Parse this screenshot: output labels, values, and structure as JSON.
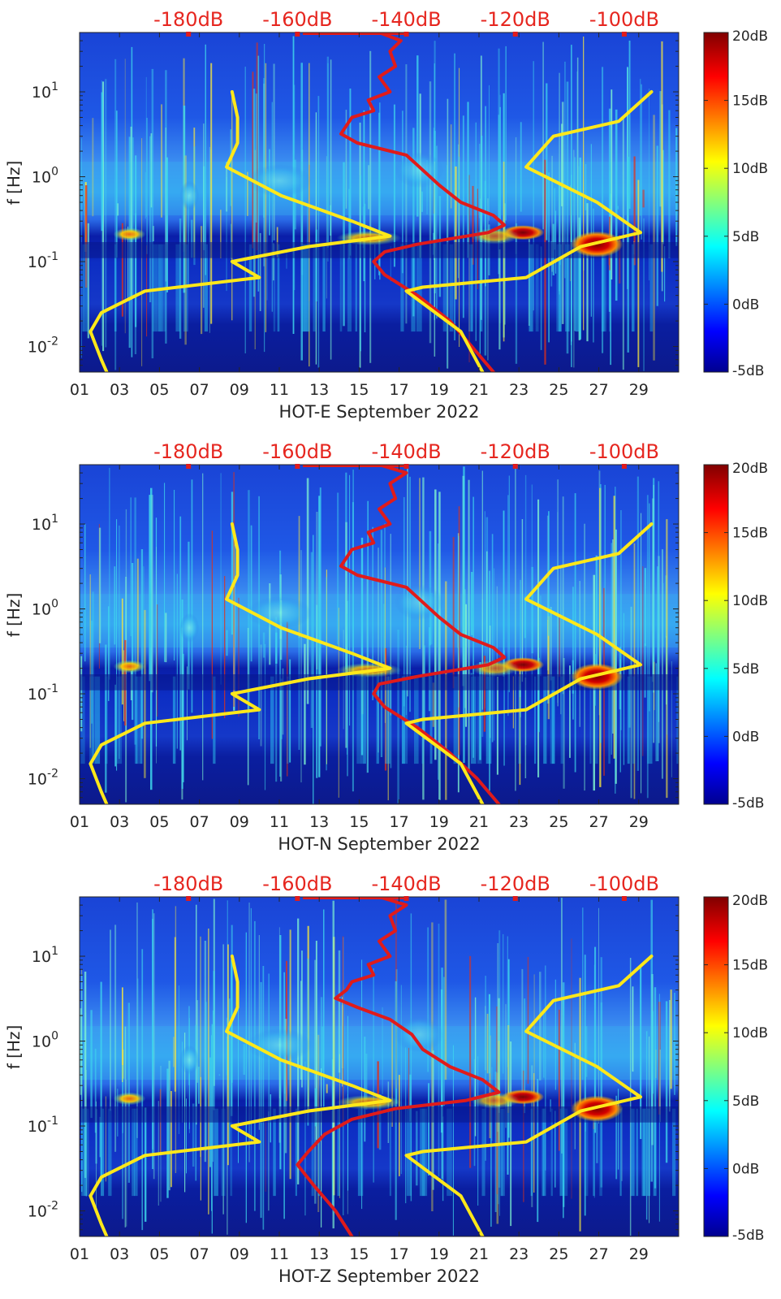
{
  "chart_data": [
    {
      "type": "heatmap",
      "title": "",
      "station": "HOT-E",
      "xlabel": "HOT-E September 2022",
      "ylabel": "f [Hz]",
      "x_tick_labels": [
        "01",
        "03",
        "05",
        "07",
        "09",
        "11",
        "13",
        "15",
        "17",
        "19",
        "21",
        "23",
        "25",
        "27",
        "29"
      ],
      "y_tick_labels": [
        {
          "base": "10",
          "exp": "1"
        },
        {
          "base": "10",
          "exp": "0"
        },
        {
          "base": "10",
          "exp": "-1"
        },
        {
          "base": "10",
          "exp": "-2"
        }
      ],
      "top_axis_labels": [
        "-180dB",
        "-160dB",
        "-140dB",
        "-120dB",
        "-100dB"
      ],
      "colorbar_labels": [
        "20dB",
        "15dB",
        "10dB",
        "5dB",
        "0dB",
        "-5dB"
      ],
      "colorbar_range_db": [
        -5,
        20
      ],
      "xlim_days": [
        1,
        31
      ],
      "ylim_hz": [
        0.005,
        50
      ],
      "overlays": [
        {
          "name": "red-psd-curve",
          "color": "#e01b1b",
          "points_db_hz": [
            [
              -145,
              50
            ],
            [
              -141,
              40
            ],
            [
              -143,
              30
            ],
            [
              -142,
              20
            ],
            [
              -145,
              15
            ],
            [
              -143,
              10
            ],
            [
              -147,
              8
            ],
            [
              -146,
              6
            ],
            [
              -150,
              5
            ],
            [
              -151,
              4
            ],
            [
              -152,
              3.2
            ],
            [
              -149,
              2.5
            ],
            [
              -140,
              1.8
            ],
            [
              -137,
              1.2
            ],
            [
              -134,
              0.8
            ],
            [
              -130,
              0.5
            ],
            [
              -124,
              0.35
            ],
            [
              -122,
              0.27
            ],
            [
              -125,
              0.22
            ],
            [
              -138,
              0.16
            ],
            [
              -144,
              0.13
            ],
            [
              -146,
              0.1
            ],
            [
              -144,
              0.07
            ],
            [
              -138,
              0.04
            ],
            [
              -132,
              0.02
            ],
            [
              -128,
              0.01
            ],
            [
              -124,
              0.005
            ]
          ]
        },
        {
          "name": "yellow-low-noise-curve",
          "color": "#ffe81a",
          "points_db_hz": [
            [
              -172,
              10
            ],
            [
              -171,
              5
            ],
            [
              -171,
              2.5
            ],
            [
              -173,
              1.3
            ],
            [
              -163,
              0.6
            ],
            [
              -150,
              0.3
            ],
            [
              -143,
              0.2
            ],
            [
              -158,
              0.15
            ],
            [
              -172,
              0.1
            ],
            [
              -167,
              0.065
            ],
            [
              -188,
              0.045
            ],
            [
              -196,
              0.025
            ],
            [
              -198,
              0.015
            ],
            [
              -196,
              0.007
            ],
            [
              -195,
              0.005
            ]
          ]
        },
        {
          "name": "yellow-high-noise-curve",
          "color": "#ffe81a",
          "points_db_hz": [
            [
              -95,
              10
            ],
            [
              -101,
              4.5
            ],
            [
              -113,
              3
            ],
            [
              -118,
              1.3
            ],
            [
              -105,
              0.5
            ],
            [
              -97,
              0.22
            ],
            [
              -108,
              0.15
            ],
            [
              -118,
              0.065
            ],
            [
              -137,
              0.05
            ],
            [
              -140,
              0.045
            ],
            [
              -130,
              0.015
            ],
            [
              -126,
              0.005
            ]
          ]
        }
      ]
    },
    {
      "type": "heatmap",
      "title": "",
      "station": "HOT-N",
      "xlabel": "HOT-N September 2022",
      "ylabel": "f [Hz]",
      "x_tick_labels": [
        "01",
        "03",
        "05",
        "07",
        "09",
        "11",
        "13",
        "15",
        "17",
        "19",
        "21",
        "23",
        "25",
        "27",
        "29"
      ],
      "y_tick_labels": [
        {
          "base": "10",
          "exp": "1"
        },
        {
          "base": "10",
          "exp": "0"
        },
        {
          "base": "10",
          "exp": "-1"
        },
        {
          "base": "10",
          "exp": "-2"
        }
      ],
      "top_axis_labels": [
        "-180dB",
        "-160dB",
        "-140dB",
        "-120dB",
        "-100dB"
      ],
      "colorbar_labels": [
        "20dB",
        "15dB",
        "10dB",
        "5dB",
        "0dB",
        "-5dB"
      ],
      "colorbar_range_db": [
        -5,
        20
      ],
      "xlim_days": [
        1,
        31
      ],
      "ylim_hz": [
        0.005,
        50
      ],
      "overlays": [
        {
          "name": "red-psd-curve",
          "color": "#e01b1b",
          "points_db_hz": [
            [
              -145,
              50
            ],
            [
              -140,
              40
            ],
            [
              -143,
              30
            ],
            [
              -142,
              20
            ],
            [
              -145,
              15
            ],
            [
              -143,
              10
            ],
            [
              -147,
              8
            ],
            [
              -146,
              6
            ],
            [
              -150,
              5
            ],
            [
              -151,
              4
            ],
            [
              -152,
              3.2
            ],
            [
              -149,
              2.5
            ],
            [
              -140,
              1.8
            ],
            [
              -137,
              1.2
            ],
            [
              -134,
              0.8
            ],
            [
              -130,
              0.5
            ],
            [
              -124,
              0.35
            ],
            [
              -122,
              0.27
            ],
            [
              -125,
              0.22
            ],
            [
              -138,
              0.16
            ],
            [
              -145,
              0.13
            ],
            [
              -146,
              0.1
            ],
            [
              -144,
              0.07
            ],
            [
              -138,
              0.04
            ],
            [
              -132,
              0.02
            ],
            [
              -127,
              0.01
            ],
            [
              -123,
              0.005
            ]
          ]
        },
        {
          "name": "yellow-low-noise-curve",
          "color": "#ffe81a",
          "points_db_hz": [
            [
              -172,
              10
            ],
            [
              -171,
              5
            ],
            [
              -171,
              2.5
            ],
            [
              -173,
              1.3
            ],
            [
              -163,
              0.6
            ],
            [
              -150,
              0.3
            ],
            [
              -143,
              0.2
            ],
            [
              -158,
              0.15
            ],
            [
              -172,
              0.1
            ],
            [
              -167,
              0.065
            ],
            [
              -188,
              0.045
            ],
            [
              -196,
              0.025
            ],
            [
              -198,
              0.015
            ],
            [
              -196,
              0.007
            ],
            [
              -195,
              0.005
            ]
          ]
        },
        {
          "name": "yellow-high-noise-curve",
          "color": "#ffe81a",
          "points_db_hz": [
            [
              -95,
              10
            ],
            [
              -101,
              4.5
            ],
            [
              -113,
              3
            ],
            [
              -118,
              1.3
            ],
            [
              -105,
              0.5
            ],
            [
              -97,
              0.22
            ],
            [
              -108,
              0.15
            ],
            [
              -118,
              0.065
            ],
            [
              -137,
              0.05
            ],
            [
              -140,
              0.045
            ],
            [
              -130,
              0.015
            ],
            [
              -126,
              0.005
            ]
          ]
        }
      ]
    },
    {
      "type": "heatmap",
      "title": "",
      "station": "HOT-Z",
      "xlabel": "HOT-Z September 2022",
      "ylabel": "f [Hz]",
      "x_tick_labels": [
        "01",
        "03",
        "05",
        "07",
        "09",
        "11",
        "13",
        "15",
        "17",
        "19",
        "21",
        "23",
        "25",
        "27",
        "29"
      ],
      "y_tick_labels": [
        {
          "base": "10",
          "exp": "1"
        },
        {
          "base": "10",
          "exp": "0"
        },
        {
          "base": "10",
          "exp": "-1"
        },
        {
          "base": "10",
          "exp": "-2"
        }
      ],
      "top_axis_labels": [
        "-180dB",
        "-160dB",
        "-140dB",
        "-120dB",
        "-100dB"
      ],
      "colorbar_labels": [
        "20dB",
        "15dB",
        "10dB",
        "5dB",
        "0dB",
        "-5dB"
      ],
      "colorbar_range_db": [
        -5,
        20
      ],
      "xlim_days": [
        1,
        31
      ],
      "ylim_hz": [
        0.005,
        50
      ],
      "overlays": [
        {
          "name": "red-psd-curve",
          "color": "#e01b1b",
          "points_db_hz": [
            [
              -145,
              50
            ],
            [
              -140,
              40
            ],
            [
              -143,
              30
            ],
            [
              -142,
              20
            ],
            [
              -145,
              15
            ],
            [
              -143,
              10
            ],
            [
              -147,
              8
            ],
            [
              -146,
              6
            ],
            [
              -150,
              5
            ],
            [
              -151,
              4
            ],
            [
              -153,
              3.2
            ],
            [
              -149,
              2.5
            ],
            [
              -143,
              1.8
            ],
            [
              -139,
              1.2
            ],
            [
              -137,
              0.8
            ],
            [
              -132,
              0.5
            ],
            [
              -126,
              0.35
            ],
            [
              -123,
              0.25
            ],
            [
              -129,
              0.2
            ],
            [
              -142,
              0.16
            ],
            [
              -150,
              0.12
            ],
            [
              -155,
              0.08
            ],
            [
              -158,
              0.05
            ],
            [
              -160,
              0.035
            ],
            [
              -157,
              0.02
            ],
            [
              -153,
              0.01
            ],
            [
              -150,
              0.005
            ]
          ]
        },
        {
          "name": "yellow-low-noise-curve",
          "color": "#ffe81a",
          "points_db_hz": [
            [
              -172,
              10
            ],
            [
              -171,
              5
            ],
            [
              -171,
              2.5
            ],
            [
              -173,
              1.3
            ],
            [
              -163,
              0.6
            ],
            [
              -150,
              0.3
            ],
            [
              -143,
              0.2
            ],
            [
              -158,
              0.15
            ],
            [
              -172,
              0.1
            ],
            [
              -167,
              0.065
            ],
            [
              -188,
              0.045
            ],
            [
              -196,
              0.025
            ],
            [
              -198,
              0.015
            ],
            [
              -196,
              0.007
            ],
            [
              -195,
              0.005
            ]
          ]
        },
        {
          "name": "yellow-high-noise-curve",
          "color": "#ffe81a",
          "points_db_hz": [
            [
              -95,
              10
            ],
            [
              -101,
              4.5
            ],
            [
              -113,
              3
            ],
            [
              -118,
              1.3
            ],
            [
              -105,
              0.5
            ],
            [
              -97,
              0.22
            ],
            [
              -108,
              0.15
            ],
            [
              -118,
              0.065
            ],
            [
              -137,
              0.05
            ],
            [
              -140,
              0.045
            ],
            [
              -130,
              0.015
            ],
            [
              -126,
              0.005
            ]
          ]
        }
      ]
    }
  ]
}
